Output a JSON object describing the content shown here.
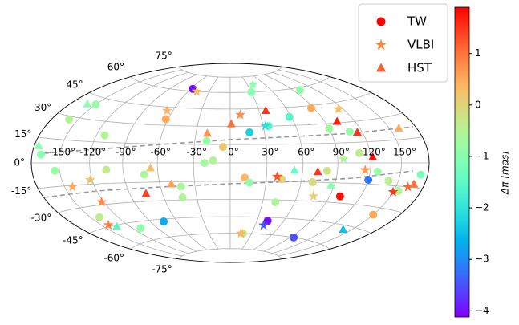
{
  "chart_data": {
    "type": "scatter",
    "projection": "hammer",
    "grid": true,
    "legend": "upper right",
    "xticks": [
      {
        "value": -150,
        "label": "-150°"
      },
      {
        "value": -120,
        "label": "-120°"
      },
      {
        "value": -90,
        "label": "-90°"
      },
      {
        "value": -60,
        "label": "-60°"
      },
      {
        "value": -30,
        "label": "-30°"
      },
      {
        "value": 0,
        "label": "0°"
      },
      {
        "value": 30,
        "label": "30°"
      },
      {
        "value": 60,
        "label": "60°"
      },
      {
        "value": 90,
        "label": "90°"
      },
      {
        "value": 120,
        "label": "120°"
      },
      {
        "value": 150,
        "label": "150°"
      }
    ],
    "yticks": [
      {
        "value": -75,
        "label": "-75°"
      },
      {
        "value": -60,
        "label": "-60°"
      },
      {
        "value": -45,
        "label": "-45°"
      },
      {
        "value": -30,
        "label": "-30°"
      },
      {
        "value": -15,
        "label": "-15°"
      },
      {
        "value": 0,
        "label": "0°"
      },
      {
        "value": 15,
        "label": "15°"
      },
      {
        "value": 30,
        "label": "30°"
      },
      {
        "value": 45,
        "label": "45°"
      },
      {
        "value": 60,
        "label": "60°"
      },
      {
        "value": 75,
        "label": "75°"
      }
    ],
    "xlim": [
      -180,
      180
    ],
    "ylim": [
      -90,
      90
    ],
    "colorbar": {
      "label": "Δπ   [mas]",
      "cmap": "rainbow",
      "clim": [
        -4.12,
        1.9
      ],
      "ticks": [
        {
          "value": 1,
          "label": "1"
        },
        {
          "value": 0,
          "label": "0"
        },
        {
          "value": -1,
          "label": "−1"
        },
        {
          "value": -2,
          "label": "−2"
        },
        {
          "value": -3,
          "label": "−3"
        },
        {
          "value": -4,
          "label": "−4"
        }
      ]
    },
    "series": [
      {
        "name": "TW",
        "marker": "circle",
        "color": "#ff0000",
        "x": [
          100,
          -57,
          42,
          95,
          -75,
          120,
          17,
          58,
          -62,
          -6,
          87,
          12,
          150,
          -150,
          -155,
          -170,
          -160,
          -105,
          -140,
          -110,
          -43,
          -20,
          -21,
          70,
          90,
          110,
          127,
          172,
          140,
          42,
          43,
          16,
          35,
          100,
          30,
          -42,
          -72,
          108,
          -112,
          18,
          -14,
          81,
          155
        ],
        "y": [
          -25,
          62,
          -48,
          -60,
          -47,
          -12,
          25,
          37,
          35,
          13,
          43,
          -12,
          -35,
          40,
          -5,
          5,
          28,
          -5,
          -38,
          -50,
          -28,
          18,
          0,
          -15,
          26,
          7,
          -6,
          -7,
          -12,
          -32,
          -13,
          -16,
          30,
          58,
          60,
          -19,
          -9,
          23,
          20,
          -60,
          2,
          -6,
          -18
        ],
        "values": [
          1.8,
          -4.0,
          -4.0,
          -3.5,
          -2.7,
          -3.2,
          -2.3,
          -1.6,
          0.5,
          0.2,
          0.5,
          0.4,
          0.5,
          -0.8,
          -0.8,
          -1.0,
          -0.5,
          -0.3,
          -0.4,
          -0.9,
          -0.5,
          -0.9,
          -0.7,
          -0.1,
          -0.7,
          -0.3,
          -0.8,
          -1.2,
          -0.4,
          -0.6,
          0.0,
          -0.9,
          -1.6,
          -0.9,
          -1.0,
          -0.6,
          -0.6,
          -0.9,
          -0.5,
          -0.3,
          -0.5,
          -0.2,
          -0.5
        ]
      },
      {
        "name": "VLBI",
        "marker": "star",
        "color": "#f4894a",
        "x": [
          -48,
          32,
          40,
          15,
          40,
          -66,
          -122,
          -142,
          -122,
          -142,
          75,
          39,
          150,
          115,
          95,
          10,
          163,
          115
        ],
        "y": [
          60,
          30,
          -52,
          -60,
          67,
          42,
          -12,
          -16,
          -28,
          -44,
          -26,
          -11,
          -19,
          40,
          3,
          40,
          -15,
          -5
        ],
        "values": [
          0.3,
          -2.1,
          -3.5,
          0.4,
          -1.0,
          0.4,
          0.2,
          0.5,
          0.8,
          0.9,
          0.1,
          1.3,
          1.5,
          0.3,
          -0.5,
          0.8,
          1.1,
          0.7
        ]
      },
      {
        "name": "HST",
        "marker": "triangle",
        "color": "#f4603a",
        "x": [
          -160,
          -175,
          -135,
          -75,
          -20,
          1,
          37,
          73,
          102,
          115,
          122,
          140,
          87,
          -50,
          53,
          -66,
          160,
          168
        ],
        "y": [
          39,
          10,
          -46,
          -24,
          24,
          32,
          43,
          -7,
          31,
          22,
          4,
          -48,
          -17,
          -17,
          -6,
          -4,
          22,
          -13
        ],
        "values": [
          -1.0,
          -1.0,
          -1.5,
          1.4,
          0.7,
          1.0,
          1.5,
          1.5,
          1.7,
          1.5,
          1.8,
          -2.5,
          -1.0,
          0.6,
          -1.4,
          0.3,
          0.5,
          1.0
        ]
      }
    ]
  }
}
